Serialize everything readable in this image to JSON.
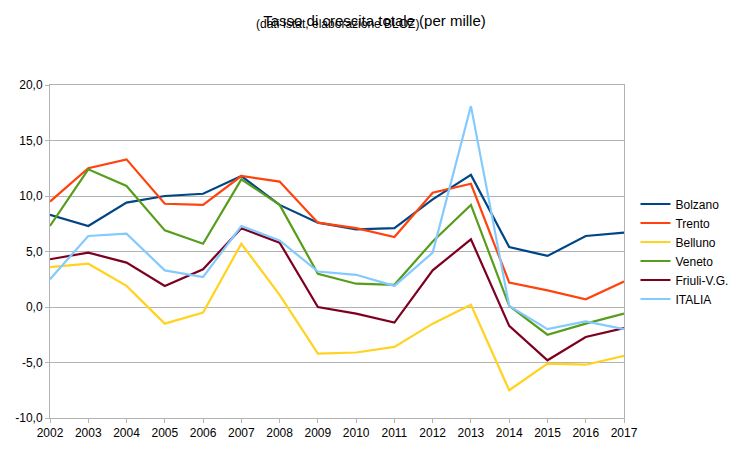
{
  "chart_data": {
    "type": "line",
    "title": "Tasso di crescita totale (per mille)",
    "subtitle": "(dati Istat, elaborazione BLOZ)",
    "categories": [
      "2002",
      "2003",
      "2004",
      "2005",
      "2006",
      "2007",
      "2008",
      "2009",
      "2010",
      "2011",
      "2012",
      "2013",
      "2014",
      "2015",
      "2016",
      "2017"
    ],
    "series": [
      {
        "name": "Bolzano",
        "color": "#004586",
        "values": [
          8.3,
          7.3,
          9.4,
          10.0,
          10.2,
          11.8,
          9.2,
          7.6,
          7.0,
          7.1,
          9.7,
          11.9,
          5.4,
          4.6,
          6.4,
          6.7
        ]
      },
      {
        "name": "Trento",
        "color": "#ff420e",
        "values": [
          9.5,
          12.5,
          13.3,
          9.3,
          9.2,
          11.8,
          11.3,
          7.6,
          7.1,
          6.3,
          10.3,
          11.1,
          2.2,
          1.5,
          0.7,
          2.3
        ]
      },
      {
        "name": "Belluno",
        "color": "#ffd320",
        "values": [
          3.6,
          3.9,
          1.9,
          -1.5,
          -0.5,
          5.7,
          1.1,
          -4.2,
          -4.1,
          -3.6,
          -1.5,
          0.2,
          -7.5,
          -5.1,
          -5.2,
          -4.4
        ]
      },
      {
        "name": "Veneto",
        "color": "#579d1c",
        "values": [
          7.3,
          12.4,
          10.9,
          6.9,
          5.7,
          11.5,
          9.2,
          3.0,
          2.1,
          2.0,
          5.9,
          9.2,
          0.1,
          -2.5,
          -1.5,
          -0.6
        ]
      },
      {
        "name": "Friuli-V.G.",
        "color": "#7e0021",
        "values": [
          4.3,
          4.9,
          4.0,
          1.9,
          3.4,
          7.1,
          5.8,
          0.0,
          -0.6,
          -1.4,
          3.3,
          6.1,
          -1.7,
          -4.8,
          -2.7,
          -1.9
        ]
      },
      {
        "name": "ITALIA",
        "color": "#83caff",
        "values": [
          2.5,
          6.4,
          6.6,
          3.3,
          2.7,
          7.3,
          6.0,
          3.2,
          2.9,
          1.9,
          4.9,
          18.1,
          0.1,
          -2.0,
          -1.3,
          -2.0
        ]
      }
    ],
    "ylim": [
      -10,
      20
    ],
    "yticks": [
      {
        "value": -10,
        "label": "-10,0"
      },
      {
        "value": -5,
        "label": "-5,0"
      },
      {
        "value": 0,
        "label": "0,0"
      },
      {
        "value": 5,
        "label": "5,0"
      },
      {
        "value": 10,
        "label": "10,0"
      },
      {
        "value": 15,
        "label": "15,0"
      },
      {
        "value": 20,
        "label": "20,0"
      }
    ],
    "grid": true,
    "legend": "right"
  }
}
